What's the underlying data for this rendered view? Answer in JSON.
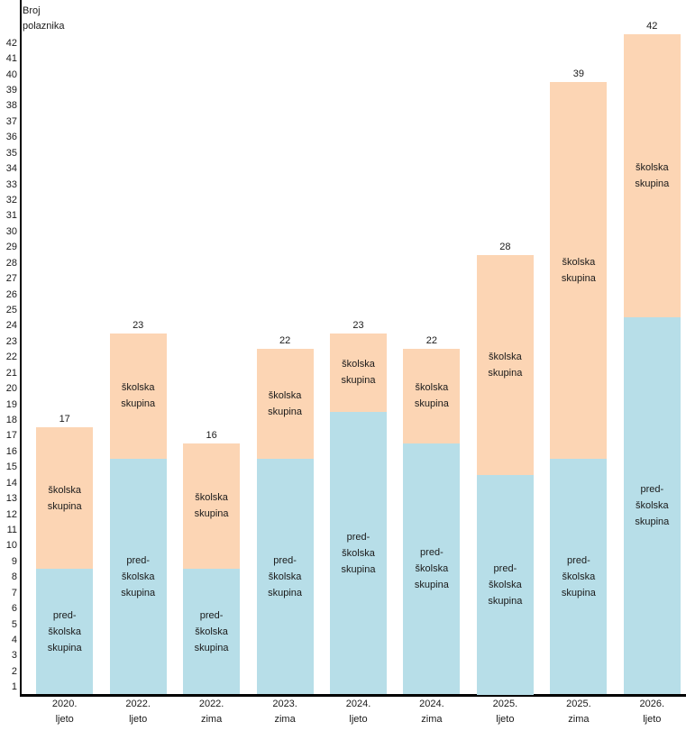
{
  "chart_data": {
    "type": "bar",
    "stacked": true,
    "ylabel": "Broj polaznika",
    "ylabel_lines": [
      "Broj",
      "polaznika"
    ],
    "categories": [
      {
        "line1": "2020.",
        "line2": "ljeto"
      },
      {
        "line1": "2022.",
        "line2": "ljeto"
      },
      {
        "line1": "2022.",
        "line2": "zima"
      },
      {
        "line1": "2023.",
        "line2": "zima"
      },
      {
        "line1": "2024.",
        "line2": "ljeto"
      },
      {
        "line1": "2024.",
        "line2": "zima"
      },
      {
        "line1": "2025.",
        "line2": "ljeto"
      },
      {
        "line1": "2025.",
        "line2": "zima"
      },
      {
        "line1": "2026.",
        "line2": "ljeto"
      }
    ],
    "series": [
      {
        "name": "pred-školska skupina",
        "label_lines": [
          "pred-",
          "školska",
          "skupina"
        ],
        "color": "#b7dee8",
        "values": [
          8,
          15,
          8,
          15,
          18,
          16,
          14,
          15,
          24
        ]
      },
      {
        "name": "školska skupina",
        "label_lines": [
          "školska",
          "skupina"
        ],
        "color": "#fcd5b4",
        "values": [
          9,
          8,
          8,
          7,
          5,
          6,
          14,
          24,
          18
        ]
      }
    ],
    "totals": [
      17,
      23,
      16,
      22,
      23,
      22,
      28,
      39,
      42
    ],
    "y_axis": {
      "min": 1,
      "max": 42,
      "step": 1,
      "ticks": [
        1,
        2,
        3,
        4,
        5,
        6,
        7,
        8,
        9,
        10,
        11,
        12,
        13,
        14,
        15,
        16,
        17,
        18,
        19,
        20,
        21,
        22,
        23,
        24,
        25,
        26,
        27,
        28,
        29,
        30,
        31,
        32,
        33,
        34,
        35,
        36,
        37,
        38,
        39,
        40,
        41,
        42
      ]
    },
    "ylim": [
      0.5,
      42.5
    ],
    "grid": false,
    "legend_position": "none"
  },
  "colors": {
    "preschool_fill": "#b7dee8",
    "school_fill": "#fcd5b4",
    "axis_line": "#000000",
    "text": "#1a1a1a",
    "background": "#ffffff"
  }
}
